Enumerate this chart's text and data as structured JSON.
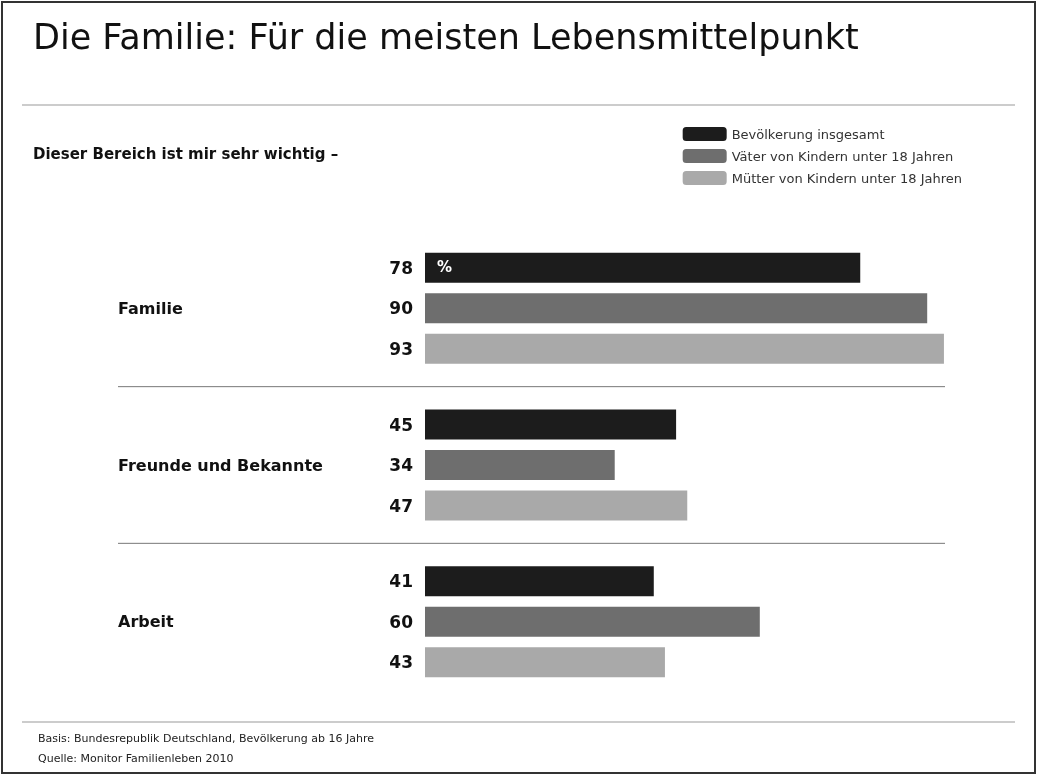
{
  "chart_data": {
    "type": "bar",
    "orientation": "horizontal",
    "title": "Die Familie: Für die meisten Lebensmittelpunkt",
    "subtitle": "Dieser Bereich ist mir sehr wichtig –",
    "categories": [
      "Familie",
      "Freunde und Bekannte",
      "Arbeit"
    ],
    "series": [
      {
        "name": "Bevölkerung insgesamt",
        "color": "#1c1c1c",
        "values": [
          78,
          45,
          41
        ]
      },
      {
        "name": "Väter von Kindern unter 18 Jahren",
        "color": "#6e6e6e",
        "values": [
          90,
          34,
          60
        ]
      },
      {
        "name": "Mütter von Kindern unter 18 Jahren",
        "color": "#a9a9a9",
        "values": [
          93,
          47,
          43
        ]
      }
    ],
    "tick_labels": "y",
    "data_labels": true,
    "legend": "top right",
    "annotations": [
      {
        "text": "%",
        "x": 0,
        "y": "Familie"
      },
      "Basis: Bundesrepublik Deutschland, Bevölkerung ab 16 Jahre",
      "Quelle: Monitor Familienleben 2010"
    ]
  }
}
